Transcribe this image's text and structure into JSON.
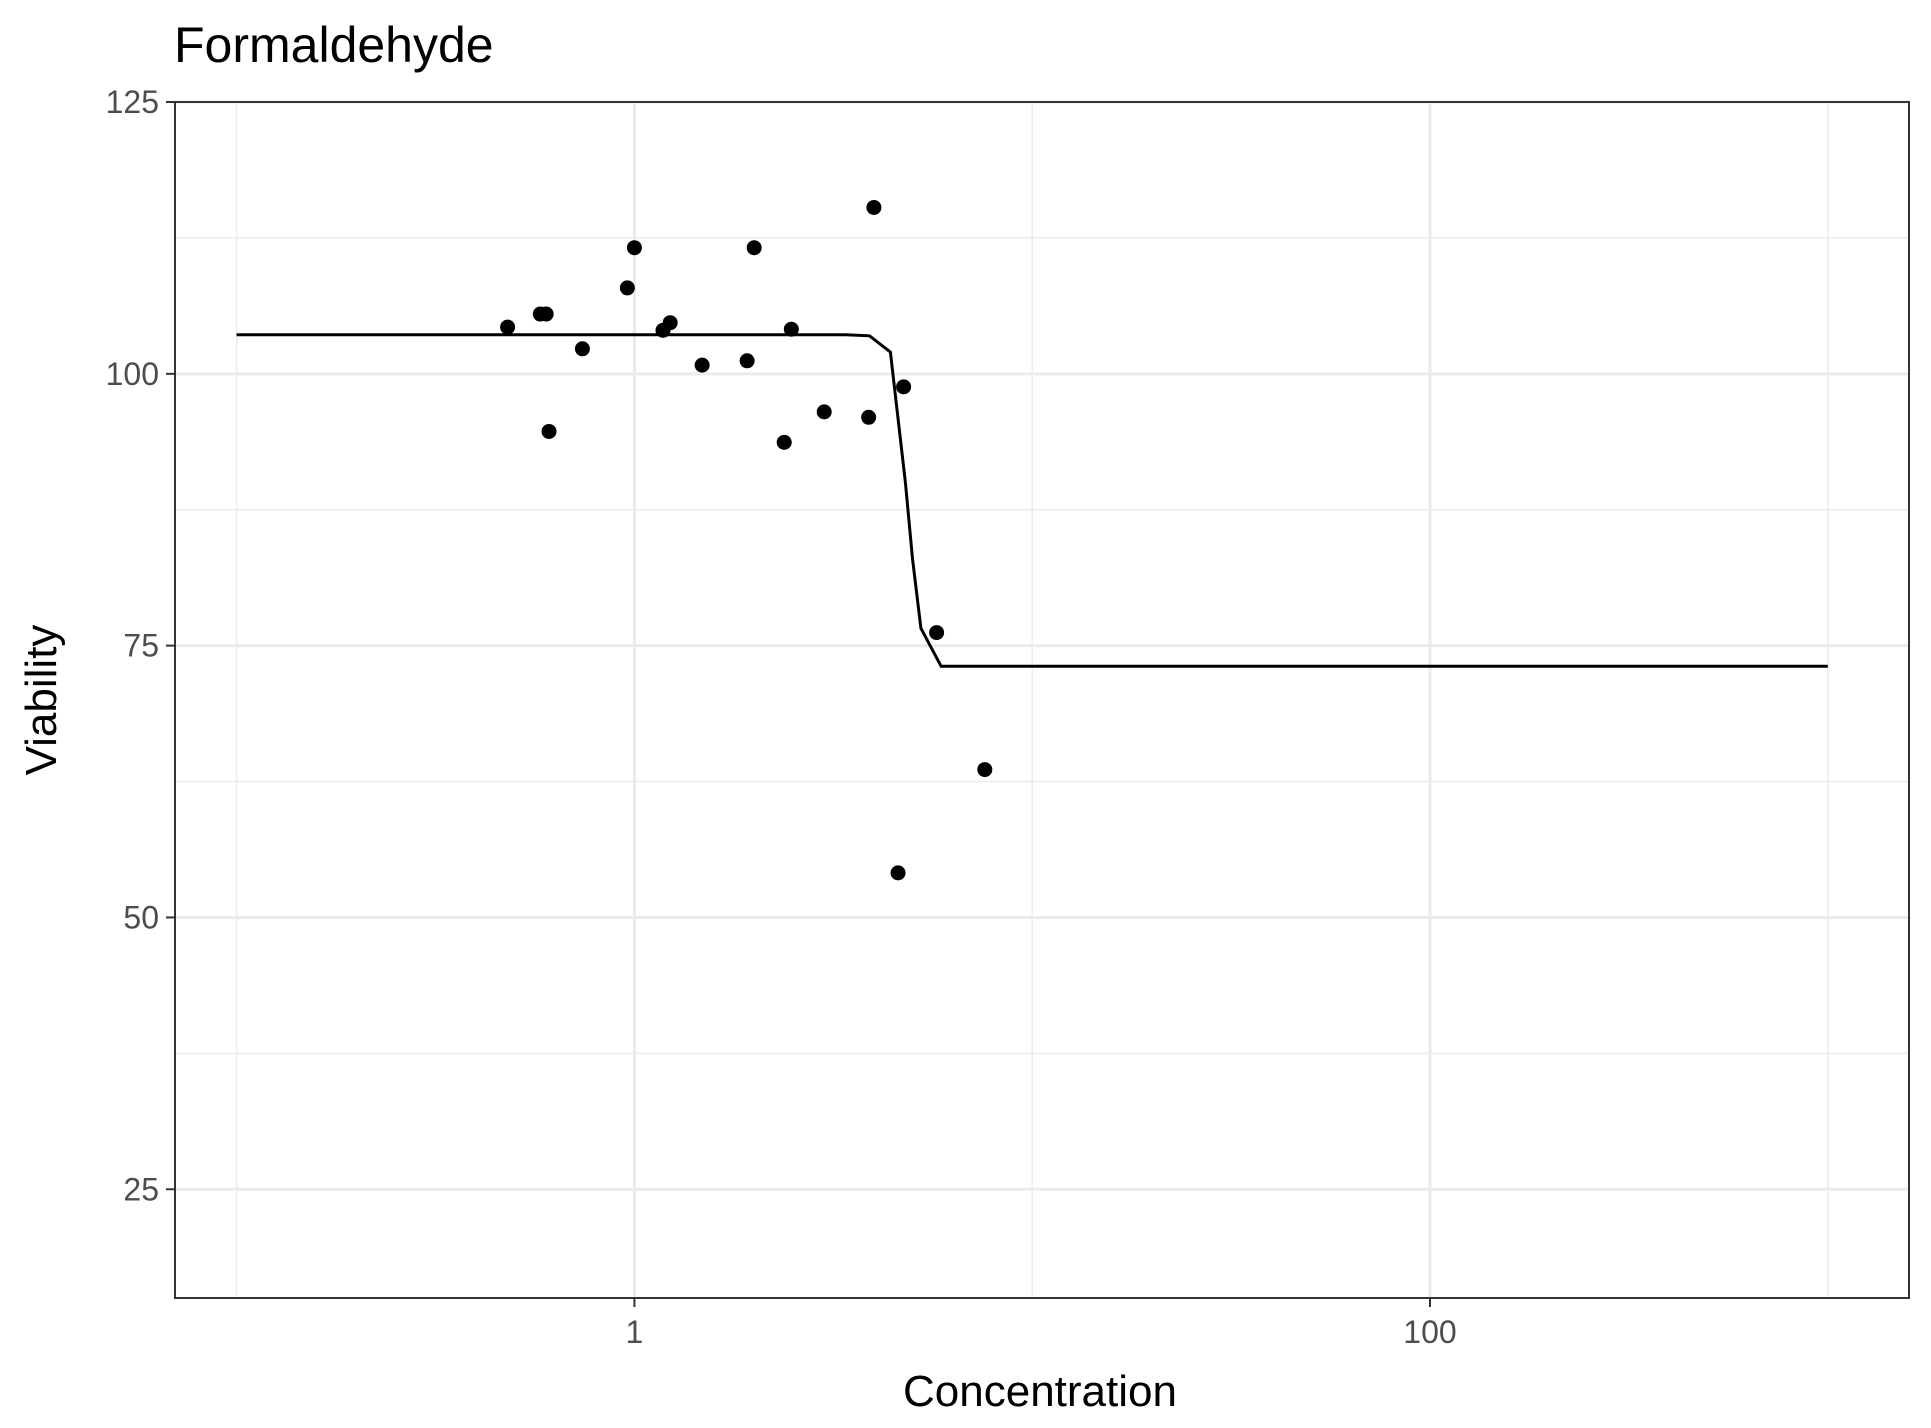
{
  "chart_data": {
    "type": "scatter",
    "title": "Formaldehyde",
    "xlabel": "Concentration",
    "ylabel": "Viability",
    "x_scale": "log10",
    "xlim": [
      0.07,
      1600
    ],
    "ylim": [
      15,
      125
    ],
    "x_ticks": [
      1,
      100
    ],
    "x_tick_labels": [
      "1",
      "100"
    ],
    "x_minor_ticks": [
      0.1,
      10,
      1000
    ],
    "y_ticks": [
      25,
      50,
      75,
      100,
      125
    ],
    "y_tick_labels": [
      "25",
      "50",
      "75",
      "100",
      "125"
    ],
    "y_minor_ticks": [
      37.5,
      62.5,
      87.5,
      112.5
    ],
    "grid": true,
    "points": [
      {
        "x": 0.48,
        "y": 104.3
      },
      {
        "x": 0.58,
        "y": 105.5
      },
      {
        "x": 0.6,
        "y": 105.5
      },
      {
        "x": 0.61,
        "y": 94.7
      },
      {
        "x": 0.74,
        "y": 102.3
      },
      {
        "x": 0.96,
        "y": 107.9
      },
      {
        "x": 1.0,
        "y": 111.6
      },
      {
        "x": 1.18,
        "y": 104.0
      },
      {
        "x": 1.23,
        "y": 104.7
      },
      {
        "x": 1.48,
        "y": 100.8
      },
      {
        "x": 1.92,
        "y": 101.2
      },
      {
        "x": 2.0,
        "y": 111.6
      },
      {
        "x": 2.38,
        "y": 93.7
      },
      {
        "x": 2.48,
        "y": 104.1
      },
      {
        "x": 3.0,
        "y": 96.5
      },
      {
        "x": 3.88,
        "y": 96.0
      },
      {
        "x": 4.0,
        "y": 115.3
      },
      {
        "x": 4.6,
        "y": 54.1
      },
      {
        "x": 4.75,
        "y": 98.8
      },
      {
        "x": 5.75,
        "y": 76.2
      },
      {
        "x": 7.6,
        "y": 63.6
      }
    ],
    "fit_line": [
      {
        "x": 0.1,
        "y": 103.6
      },
      {
        "x": 1.0,
        "y": 103.6
      },
      {
        "x": 3.4,
        "y": 103.6
      },
      {
        "x": 3.9,
        "y": 103.5
      },
      {
        "x": 4.4,
        "y": 102.0
      },
      {
        "x": 4.8,
        "y": 90.0
      },
      {
        "x": 5.0,
        "y": 83.0
      },
      {
        "x": 5.25,
        "y": 76.6
      },
      {
        "x": 5.9,
        "y": 73.1
      },
      {
        "x": 10.0,
        "y": 73.1
      },
      {
        "x": 100.0,
        "y": 73.1
      },
      {
        "x": 1000.0,
        "y": 73.1
      }
    ]
  }
}
